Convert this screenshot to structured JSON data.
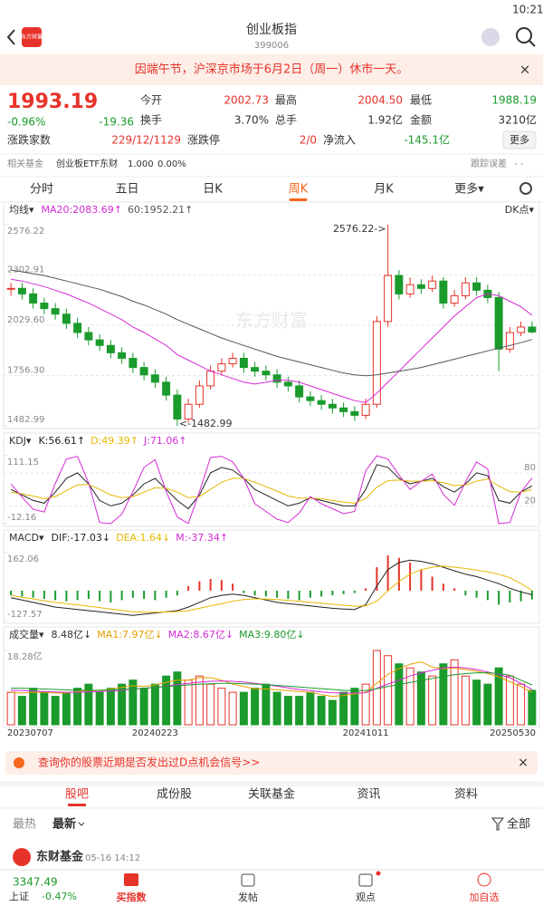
{
  "status_bar": {
    "time": "10:21"
  },
  "header": {
    "logo": "东方财富",
    "title": "创业板指",
    "code": "399006"
  },
  "notice": {
    "text": "因端午节，沪深京市场于6月2日（周一）休市一天。",
    "close": "×"
  },
  "quote": {
    "price": "1993.19",
    "change_pct": "-0.96%",
    "change": "-19.36",
    "open_label": "今开",
    "open": "2002.73",
    "high_label": "最高",
    "high": "2004.50",
    "low_label": "最低",
    "low": "1988.19",
    "turnover_label": "换手",
    "turnover": "3.70%",
    "volume_label": "总手",
    "volume": "1.92亿",
    "amount_label": "金额",
    "amount": "3210亿",
    "breadth_label": "涨跌家数",
    "breadth": "229/12/1129",
    "limit_label": "涨跌停",
    "limit": "2/0",
    "inflow_label": "净流入",
    "inflow": "-145.1亿",
    "more": "更多"
  },
  "fund": {
    "label": "相关基金",
    "name": "创业板ETF东财",
    "price": "1.000",
    "pct": "0.00%",
    "tracking": "跟踪误差",
    "tracking_value": "- -"
  },
  "period_tabs": [
    "分时",
    "五日",
    "日K",
    "周K",
    "月K",
    "更多▾"
  ],
  "chart_data": [
    {
      "type": "candlestick",
      "title": "均线▾",
      "indicator": "DK点▾",
      "watermark": "东方财富",
      "annotations": [
        "2576.22->",
        "<-1482.99"
      ],
      "ylim": [
        1482.99,
        2576.22
      ],
      "yticks": [
        2576.22,
        2302.91,
        {
          "value": 2029.6,
          "label": "2029.60"
        },
        {
          "value": 1756.3,
          "label": "1756.30"
        },
        1482.99
      ],
      "up_color": "#e6332a",
      "down_color": "#1a9b2c",
      "values": [
        2230,
        2200,
        2150,
        2120,
        2090,
        2040,
        1990,
        1950,
        1920,
        1880,
        1850,
        1800,
        1760,
        1720,
        1650,
        1520,
        1600,
        1700,
        1780,
        1820,
        1850,
        1800,
        1780,
        1760,
        1720,
        1700,
        1640,
        1620,
        1600,
        1580,
        1560,
        1540,
        1600,
        2050,
        2300,
        2200,
        2250,
        2230,
        2270,
        2150,
        2190,
        2260,
        2220,
        2180,
        1900,
        1990,
        2020,
        1993.19
      ],
      "highs": [
        2260,
        2260,
        2230,
        2180,
        2150,
        2120,
        2070,
        2020,
        1980,
        1950,
        1910,
        1880,
        1830,
        1790,
        1750,
        1680,
        1630,
        1730,
        1810,
        1850,
        1880,
        1880,
        1830,
        1810,
        1790,
        1750,
        1730,
        1670,
        1650,
        1630,
        1610,
        1590,
        1630,
        2080,
        2576.22,
        2330,
        2290,
        2280,
        2300,
        2290,
        2220,
        2290,
        2290,
        2250,
        2210,
        2020,
        2050,
        2050
      ],
      "lows": [
        2190,
        2170,
        2120,
        2090,
        2060,
        2010,
        1960,
        1920,
        1890,
        1850,
        1820,
        1770,
        1730,
        1690,
        1620,
        1482.99,
        1500,
        1580,
        1680,
        1760,
        1800,
        1770,
        1750,
        1730,
        1690,
        1670,
        1610,
        1590,
        1570,
        1550,
        1530,
        1510,
        1520,
        1580,
        2020,
        2170,
        2180,
        2200,
        2210,
        2120,
        2130,
        2170,
        2190,
        2150,
        1780,
        1880,
        1970,
        1985
      ],
      "series": [
        {
          "name": "MA20:2083.69↑",
          "color": "#d52bd5",
          "values": [
            2280,
            2270,
            2255,
            2240,
            2220,
            2200,
            2175,
            2150,
            2120,
            2090,
            2060,
            2020,
            1990,
            1955,
            1920,
            1870,
            1840,
            1810,
            1780,
            1760,
            1740,
            1720,
            1710,
            1720,
            1730,
            1730,
            1720,
            1700,
            1680,
            1660,
            1640,
            1620,
            1610,
            1660,
            1720,
            1780,
            1840,
            1900,
            1960,
            2020,
            2080,
            2130,
            2180,
            2200,
            2190,
            2160,
            2130,
            2083.69
          ]
        },
        {
          "name": "60:1952.21↑",
          "color": "#555555",
          "values": [
            2330,
            2320,
            2310,
            2300,
            2285,
            2270,
            2255,
            2240,
            2225,
            2205,
            2185,
            2160,
            2140,
            2115,
            2090,
            2060,
            2035,
            2010,
            1985,
            1960,
            1940,
            1920,
            1900,
            1880,
            1860,
            1845,
            1830,
            1815,
            1800,
            1785,
            1770,
            1760,
            1755,
            1760,
            1770,
            1780,
            1790,
            1800,
            1815,
            1830,
            1845,
            1860,
            1875,
            1890,
            1905,
            1920,
            1935,
            1952.21
          ]
        }
      ]
    },
    {
      "type": "line",
      "title": "KDJ▾",
      "ylim": [
        -12.16,
        111.15
      ],
      "yticks": [
        111.15,
        80,
        20,
        -12.16
      ],
      "series": [
        {
          "name": "K:56.61↑",
          "color": "#222222",
          "values": [
            50,
            40,
            30,
            25,
            45,
            70,
            80,
            60,
            30,
            20,
            25,
            40,
            60,
            70,
            50,
            30,
            15,
            40,
            80,
            90,
            85,
            70,
            50,
            40,
            30,
            20,
            25,
            35,
            30,
            25,
            20,
            20,
            50,
            95,
            90,
            70,
            60,
            65,
            70,
            55,
            45,
            60,
            80,
            75,
            30,
            25,
            45,
            56.61
          ]
        },
        {
          "name": "D:49.39↑",
          "color": "#e6b800",
          "values": [
            45,
            42,
            38,
            33,
            37,
            48,
            58,
            59,
            50,
            40,
            35,
            37,
            45,
            53,
            52,
            45,
            35,
            37,
            50,
            63,
            70,
            70,
            63,
            55,
            47,
            38,
            34,
            34,
            33,
            30,
            27,
            25,
            33,
            54,
            66,
            67,
            65,
            65,
            66,
            62,
            57,
            58,
            65,
            69,
            56,
            46,
            45,
            49.39
          ]
        },
        {
          "name": "J:71.06↑",
          "color": "#d52bd5",
          "values": [
            60,
            36,
            14,
            9,
            61,
            105,
            110,
            62,
            -10,
            -12,
            5,
            46,
            90,
            104,
            46,
            0,
            -12,
            46,
            108,
            110,
            100,
            70,
            24,
            10,
            -4,
            -10,
            7,
            37,
            24,
            15,
            6,
            10,
            84,
            111,
            105,
            76,
            50,
            65,
            78,
            41,
            21,
            64,
            100,
            87,
            -12,
            -10,
            45,
            71.06
          ]
        }
      ]
    },
    {
      "type": "macd",
      "title": "MACD▾",
      "ylim": [
        -127.57,
        162.06
      ],
      "yticks": [
        162.06,
        -127.57
      ],
      "up_color": "#e6332a",
      "down_color": "#1a9b2c",
      "series": [
        {
          "name": "DIF:-17.03↓",
          "color": "#222222",
          "values": [
            -30,
            -40,
            -50,
            -60,
            -70,
            -75,
            -80,
            -85,
            -90,
            -95,
            -100,
            -105,
            -100,
            -95,
            -90,
            -85,
            -70,
            -50,
            -30,
            -20,
            -15,
            -20,
            -30,
            -40,
            -50,
            -55,
            -60,
            -65,
            -70,
            -75,
            -78,
            -80,
            -60,
            20,
            90,
            120,
            130,
            125,
            115,
            100,
            85,
            70,
            60,
            45,
            30,
            10,
            -5,
            -17.03
          ]
        },
        {
          "name": "DEA:1.64↓",
          "color": "#e6b800",
          "values": [
            -20,
            -28,
            -35,
            -43,
            -50,
            -55,
            -60,
            -66,
            -72,
            -78,
            -84,
            -90,
            -92,
            -92,
            -91,
            -89,
            -85,
            -75,
            -65,
            -55,
            -45,
            -38,
            -35,
            -36,
            -38,
            -41,
            -45,
            -49,
            -53,
            -58,
            -62,
            -66,
            -65,
            -45,
            0,
            40,
            70,
            90,
            100,
            105,
            100,
            95,
            88,
            80,
            70,
            55,
            30,
            1.64
          ]
        },
        {
          "name": "M:-37.34↑",
          "color": "#d52bd5",
          "style": "bar",
          "values": [
            -20,
            -25,
            -30,
            -35,
            -40,
            -45,
            -40,
            -35,
            -45,
            -50,
            -40,
            -30,
            -35,
            -40,
            -30,
            -20,
            20,
            40,
            50,
            45,
            30,
            -10,
            -20,
            -25,
            -30,
            -35,
            -40,
            -30,
            -25,
            -20,
            -15,
            -10,
            10,
            100,
            150,
            140,
            120,
            90,
            60,
            30,
            10,
            -20,
            -30,
            -40,
            -60,
            -50,
            -45,
            -37.34
          ]
        }
      ]
    },
    {
      "type": "volume",
      "title": "成交量▾",
      "ylim": [
        0,
        18.28
      ],
      "yticks": [
        {
          "value": 18.28,
          "label": "18.28亿"
        }
      ],
      "up_color": "#e6332a",
      "down_color": "#1a9b2c",
      "categories": [
        "20230707",
        null,
        null,
        null,
        null,
        null,
        null,
        null,
        null,
        null,
        null,
        null,
        null,
        "20240223",
        null,
        null,
        null,
        null,
        null,
        null,
        null,
        null,
        null,
        null,
        null,
        null,
        null,
        null,
        null,
        null,
        null,
        null,
        "20241011",
        null,
        null,
        null,
        null,
        null,
        null,
        null,
        null,
        null,
        null,
        null,
        null,
        null,
        null,
        "20250530"
      ],
      "series": [
        {
          "name": "8.48亿↓",
          "color": "#333333",
          "style": "bar",
          "values": [
            8,
            7,
            9,
            8,
            7,
            8,
            9,
            10,
            8,
            9,
            10,
            11,
            9,
            10,
            12,
            13,
            11,
            12,
            10,
            9,
            8,
            8,
            9,
            10,
            8,
            7,
            7,
            8,
            7,
            6,
            8,
            9,
            10,
            18.28,
            17,
            15,
            14,
            13,
            12,
            15,
            16,
            12,
            11,
            10,
            14,
            12,
            10,
            8.48
          ]
        },
        {
          "name": "MA1:7.97亿↓",
          "color": "#e6a000",
          "values": [
            8,
            7.8,
            8,
            8,
            7.8,
            7.8,
            8.2,
            8.4,
            8.4,
            8.8,
            9.2,
            9.6,
            9.4,
            9.8,
            10.4,
            11,
            11,
            11.6,
            11.6,
            11,
            10,
            9.4,
            8.8,
            8.8,
            8.6,
            8.4,
            8.2,
            8,
            7.4,
            7,
            7.2,
            7.6,
            8,
            10.2,
            12.4,
            13.8,
            14.9,
            15.5,
            14.2,
            13.8,
            14,
            13.6,
            13.2,
            12.6,
            11.8,
            10.6,
            9.4,
            7.97
          ]
        },
        {
          "name": "MA2:8.67亿↓",
          "color": "#d52bd5",
          "values": [
            8.5,
            8.4,
            8.3,
            8.2,
            8.1,
            8.0,
            8.0,
            8.1,
            8.2,
            8.3,
            8.5,
            8.8,
            9.0,
            9.2,
            9.5,
            9.9,
            10.2,
            10.5,
            10.7,
            10.8,
            10.7,
            10.5,
            10.2,
            9.9,
            9.5,
            9.1,
            8.7,
            8.4,
            8.1,
            7.9,
            7.8,
            7.8,
            7.9,
            9.0,
            10.0,
            11.0,
            12.0,
            12.8,
            13.4,
            14.0,
            14.2,
            14.0,
            13.6,
            13.0,
            12.4,
            11.6,
            10.2,
            8.67
          ]
        },
        {
          "name": "MA3:9.80亿↓",
          "color": "#1a9b2c",
          "values": [
            9,
            9,
            8.9,
            8.8,
            8.7,
            8.6,
            8.5,
            8.5,
            8.5,
            8.6,
            8.7,
            8.8,
            9,
            9.2,
            9.4,
            9.6,
            9.8,
            10,
            10.1,
            10.2,
            10.2,
            10.1,
            10,
            9.9,
            9.7,
            9.5,
            9.3,
            9.1,
            8.9,
            8.7,
            8.5,
            8.4,
            8.4,
            8.9,
            9.4,
            9.9,
            10.4,
            10.9,
            11.4,
            11.9,
            12.3,
            12.6,
            12.8,
            12.8,
            12.6,
            12.2,
            11,
            9.8
          ]
        }
      ]
    }
  ],
  "banner": {
    "text": "查询你的股票近期是否发出过D点机会信号>>",
    "close": "×"
  },
  "community_tabs": [
    "股吧",
    "成份股",
    "关联基金",
    "资讯",
    "资料"
  ],
  "sort": {
    "hot": "最热",
    "latest": "最新",
    "all": "全部"
  },
  "post": {
    "author": "东财基金",
    "time": "05-16 14:12"
  },
  "bottom_bar": {
    "index_value": "3347.49",
    "index_name": "上证",
    "index_pct": "-0.47%",
    "buy_index": "买指数",
    "post": "发帖",
    "views": "观点",
    "add": "加自选"
  }
}
